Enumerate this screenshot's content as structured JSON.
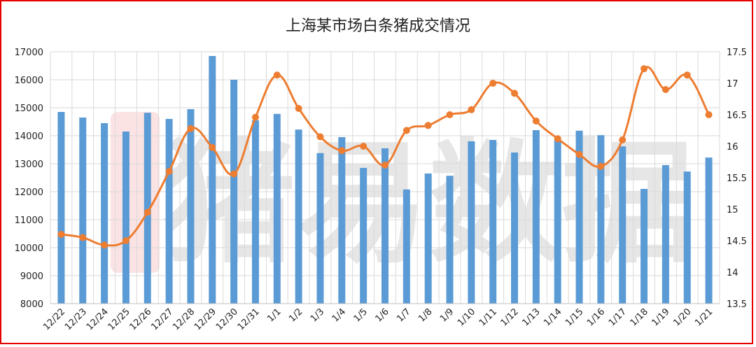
{
  "chart_data": {
    "type": "bar+line",
    "title": "上海某市场白条猪成交情况",
    "watermark": "猪易数据",
    "categories": [
      "12/22",
      "12/23",
      "12/24",
      "12/25",
      "12/26",
      "12/27",
      "12/28",
      "12/29",
      "12/30",
      "12/31",
      "1/1",
      "1/2",
      "1/3",
      "1/4",
      "1/5",
      "1/6",
      "1/7",
      "1/8",
      "1/9",
      "1/10",
      "1/11",
      "1/12",
      "1/13",
      "1/14",
      "1/15",
      "1/16",
      "1/17",
      "1/18",
      "1/19",
      "1/20",
      "1/21"
    ],
    "y_left": {
      "min": 8000,
      "max": 17000,
      "step": 1000,
      "ticks": [
        "8000",
        "9000",
        "10000",
        "11000",
        "12000",
        "13000",
        "14000",
        "15000",
        "16000",
        "17000"
      ]
    },
    "y_right": {
      "min": 13.5,
      "max": 17.5,
      "step": 0.5,
      "ticks": [
        "13.5",
        "14",
        "14.5",
        "15",
        "15.5",
        "16",
        "16.5",
        "17",
        "17.5"
      ]
    },
    "series": [
      {
        "type": "bar",
        "axis": "left",
        "color": "#5b9bd5",
        "values": [
          14850,
          14650,
          14450,
          14150,
          14820,
          14600,
          14950,
          16850,
          16000,
          14550,
          14780,
          14220,
          13380,
          13950,
          12850,
          13550,
          12080,
          12650,
          12570,
          13800,
          13850,
          13400,
          14200,
          13850,
          14180,
          14020,
          13620,
          12100,
          12950,
          12720,
          13220
        ]
      },
      {
        "type": "line",
        "axis": "right",
        "color": "#ed7d31",
        "values": [
          14.6,
          14.55,
          14.43,
          14.5,
          14.95,
          15.6,
          16.28,
          15.98,
          15.56,
          16.46,
          17.13,
          16.6,
          16.15,
          15.93,
          16.0,
          15.7,
          16.25,
          16.33,
          16.5,
          16.58,
          17.0,
          16.84,
          16.4,
          16.12,
          15.87,
          15.68,
          16.1,
          17.23,
          16.9,
          17.13,
          16.5
        ]
      }
    ],
    "grid": true,
    "legend": "none"
  },
  "colors": {
    "frame": "#e60000",
    "bars": "#5b9bd5",
    "line": "#ed7d31",
    "grid": "#d9d9d9",
    "watermark": "#e6e6e6"
  }
}
